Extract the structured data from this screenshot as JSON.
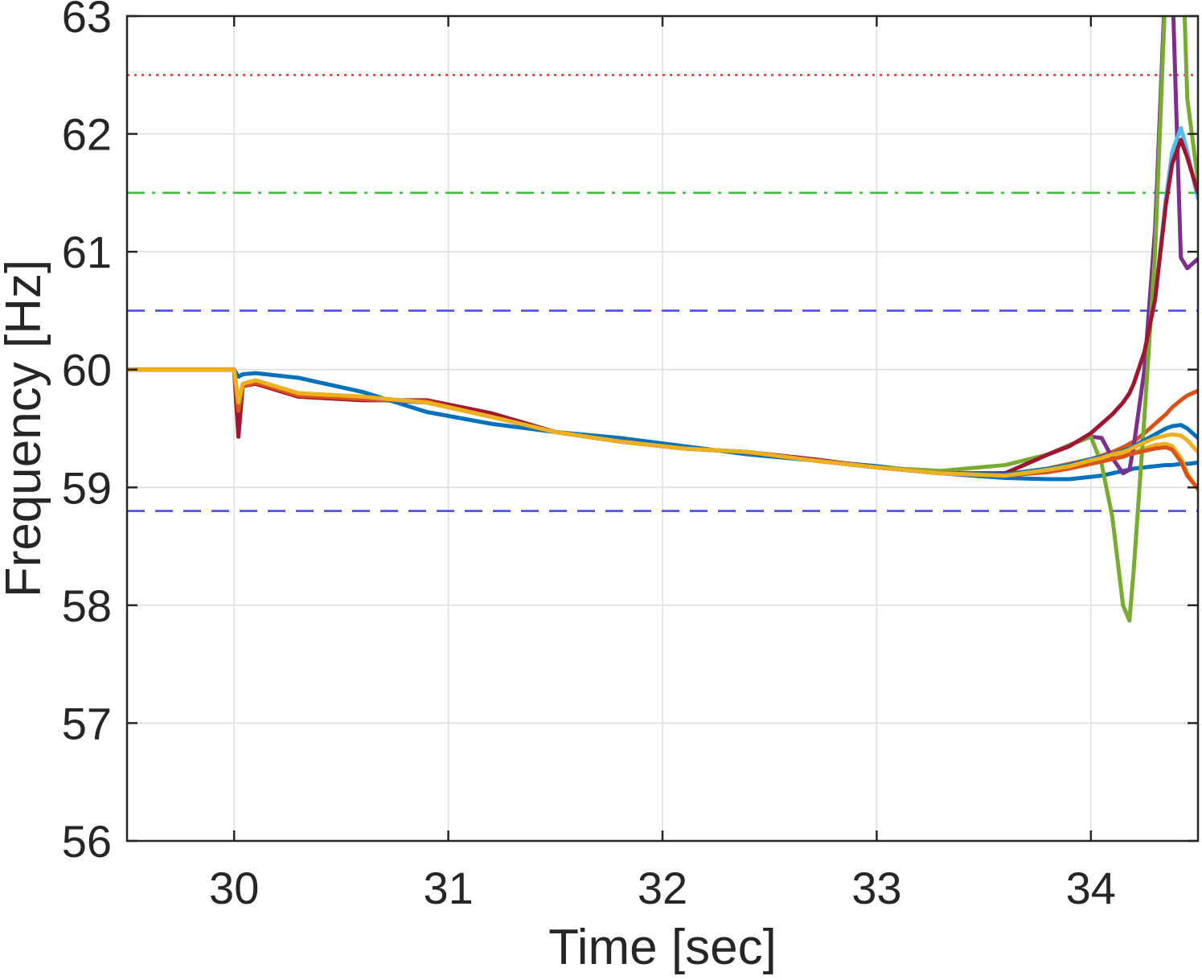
{
  "chart_data": {
    "type": "line",
    "xlabel": "Time [sec]",
    "ylabel": "Frequency [Hz]",
    "xlim": [
      29.5,
      34.5
    ],
    "ylim": [
      56,
      63
    ],
    "x_ticks": [
      30,
      31,
      32,
      33,
      34
    ],
    "y_ticks": [
      56,
      57,
      58,
      59,
      60,
      61,
      62,
      63
    ],
    "grid": true,
    "legend": "none",
    "x": [
      29.5,
      30.0,
      30.02,
      30.04,
      30.1,
      30.3,
      30.6,
      30.9,
      31.2,
      31.5,
      31.8,
      32.1,
      32.4,
      32.7,
      33.0,
      33.3,
      33.6,
      33.8,
      33.9,
      34.0,
      34.05,
      34.1,
      34.15,
      34.18,
      34.2,
      34.25,
      34.3,
      34.35,
      34.38,
      34.42,
      34.45,
      34.5
    ],
    "series": [
      {
        "color": "#0072BD",
        "values": [
          60,
          60,
          59.94,
          59.96,
          59.97,
          59.93,
          59.81,
          59.64,
          59.54,
          59.47,
          59.42,
          59.35,
          59.28,
          59.23,
          59.18,
          59.12,
          59.08,
          59.07,
          59.07,
          59.09,
          59.1,
          59.12,
          59.14,
          59.15,
          59.16,
          59.17,
          59.18,
          59.19,
          59.19,
          59.2,
          59.2,
          59.21
        ]
      },
      {
        "color": "#D95319",
        "values": [
          60,
          60,
          59.62,
          59.86,
          59.89,
          59.78,
          59.75,
          59.73,
          59.6,
          59.47,
          59.39,
          59.33,
          59.3,
          59.23,
          59.17,
          59.12,
          59.11,
          59.16,
          59.2,
          59.24,
          59.27,
          59.3,
          59.34,
          59.37,
          59.39,
          59.46,
          59.54,
          59.62,
          59.68,
          59.74,
          59.78,
          59.82
        ]
      },
      {
        "color": "#EDB120",
        "values": [
          60,
          60,
          59.68,
          59.87,
          59.9,
          59.8,
          59.77,
          59.72,
          59.6,
          59.47,
          59.39,
          59.33,
          59.3,
          59.23,
          59.17,
          59.12,
          59.1,
          59.14,
          59.17,
          59.21,
          59.23,
          59.25,
          59.27,
          59.29,
          59.3,
          59.33,
          59.36,
          59.37,
          59.35,
          59.25,
          59.12,
          58.98
        ]
      },
      {
        "color": "#7E2F8E",
        "values": [
          60,
          60,
          59.6,
          59.86,
          59.89,
          59.78,
          59.75,
          59.73,
          59.6,
          59.47,
          59.39,
          59.33,
          59.3,
          59.23,
          59.17,
          59.12,
          59.12,
          59.28,
          59.36,
          59.43,
          59.42,
          59.25,
          59.12,
          59.15,
          59.35,
          60.0,
          61.2,
          63.4,
          63.3,
          60.95,
          60.86,
          60.94
        ]
      },
      {
        "color": "#77AC30",
        "values": [
          60,
          60,
          59.62,
          59.86,
          59.89,
          59.78,
          59.75,
          59.73,
          59.62,
          59.47,
          59.39,
          59.33,
          59.3,
          59.23,
          59.17,
          59.14,
          59.19,
          59.28,
          59.36,
          59.43,
          59.2,
          58.75,
          58.0,
          57.87,
          58.3,
          59.6,
          61.0,
          63.3,
          64.5,
          64.0,
          62.3,
          61.6
        ]
      },
      {
        "color": "#4DBEEE",
        "values": [
          60,
          60,
          59.66,
          59.86,
          59.89,
          59.78,
          59.75,
          59.73,
          59.61,
          59.47,
          59.39,
          59.33,
          59.3,
          59.23,
          59.17,
          59.12,
          59.12,
          59.28,
          59.35,
          59.46,
          59.54,
          59.62,
          59.72,
          59.8,
          59.88,
          60.15,
          60.6,
          61.45,
          61.85,
          62.05,
          61.85,
          61.45
        ]
      },
      {
        "color": "#A2142F",
        "values": [
          60,
          60,
          59.43,
          59.86,
          59.88,
          59.77,
          59.74,
          59.74,
          59.63,
          59.47,
          59.39,
          59.33,
          59.3,
          59.24,
          59.17,
          59.12,
          59.12,
          59.28,
          59.35,
          59.46,
          59.54,
          59.62,
          59.72,
          59.8,
          59.88,
          60.15,
          60.6,
          61.4,
          61.75,
          61.95,
          61.8,
          61.5
        ]
      },
      {
        "color": "#0072BD",
        "values": [
          60,
          60,
          59.7,
          59.87,
          59.9,
          59.79,
          59.75,
          59.72,
          59.6,
          59.47,
          59.39,
          59.33,
          59.3,
          59.23,
          59.17,
          59.12,
          59.11,
          59.16,
          59.19,
          59.24,
          59.26,
          59.28,
          59.31,
          59.33,
          59.35,
          59.4,
          59.45,
          59.5,
          59.52,
          59.53,
          59.5,
          59.42
        ]
      },
      {
        "color": "#D95319",
        "values": [
          60,
          60,
          59.65,
          59.86,
          59.89,
          59.78,
          59.75,
          59.73,
          59.6,
          59.47,
          59.39,
          59.33,
          59.3,
          59.23,
          59.17,
          59.12,
          59.1,
          59.13,
          59.16,
          59.2,
          59.22,
          59.24,
          59.26,
          59.28,
          59.29,
          59.31,
          59.33,
          59.34,
          59.32,
          59.22,
          59.1,
          58.99
        ]
      },
      {
        "color": "#EDB120",
        "values": [
          60,
          60,
          59.72,
          59.88,
          59.91,
          59.8,
          59.77,
          59.72,
          59.6,
          59.47,
          59.39,
          59.33,
          59.3,
          59.23,
          59.17,
          59.12,
          59.1,
          59.15,
          59.18,
          59.23,
          59.25,
          59.28,
          59.3,
          59.32,
          59.34,
          59.38,
          59.42,
          59.44,
          59.45,
          59.44,
          59.4,
          59.3
        ]
      }
    ],
    "reference_lines": [
      {
        "y": 62.5,
        "style": "dotted",
        "color": "#F03A3A"
      },
      {
        "y": 61.5,
        "style": "dash-dot",
        "color": "#3CC03C"
      },
      {
        "y": 60.5,
        "style": "dashed",
        "color": "#4B4BF0"
      },
      {
        "y": 58.8,
        "style": "dashed",
        "color": "#4B4BF0"
      }
    ],
    "colors": {
      "axes": "#262626",
      "grid": "#DFDFDF"
    }
  }
}
